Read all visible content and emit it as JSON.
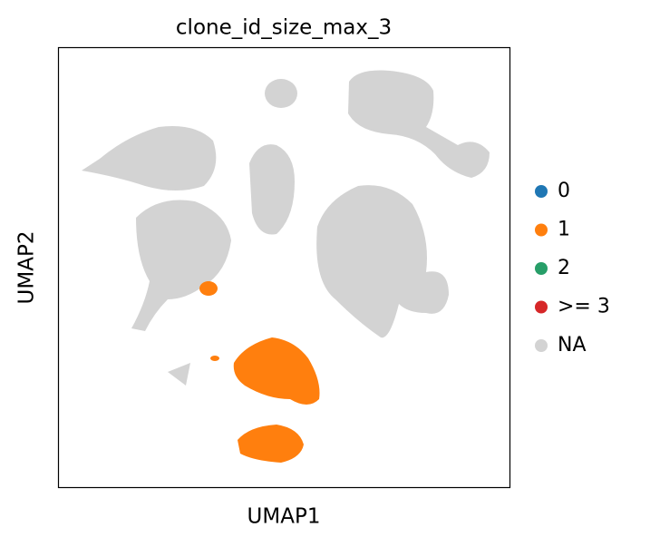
{
  "chart_data": {
    "type": "scatter",
    "title": "clone_id_size_max_3",
    "xlabel": "UMAP1",
    "ylabel": "UMAP2",
    "series": [
      {
        "name": "0",
        "color": "#1f77b4"
      },
      {
        "name": "1",
        "color": "#ff7f0e"
      },
      {
        "name": "2",
        "color": "#279e68"
      },
      {
        "name": ">= 3",
        "color": "#d62728"
      },
      {
        "name": "NA",
        "color": "#d3d3d3"
      }
    ],
    "legend": "right"
  }
}
